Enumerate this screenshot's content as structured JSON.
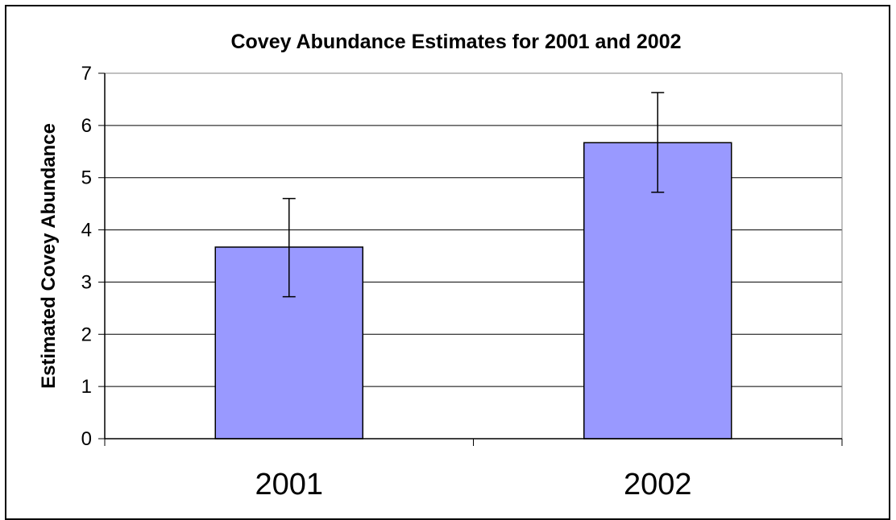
{
  "chart_data": {
    "type": "bar",
    "title": "Covey Abundance Estimates for 2001 and 2002",
    "xlabel": "",
    "ylabel": "Estimated Covey Abundance",
    "categories": [
      "2001",
      "2002"
    ],
    "values": [
      3.67,
      5.67
    ],
    "error_low": [
      2.72,
      4.72
    ],
    "error_high": [
      4.6,
      6.63
    ],
    "ylim": [
      0,
      7
    ],
    "yticks": [
      "0",
      "1",
      "2",
      "3",
      "4",
      "5",
      "6",
      "7"
    ],
    "grid": true,
    "legend": "none",
    "colors": {
      "bar_fill": "#9999ff",
      "bar_stroke": "#000000",
      "grid": "#000000"
    }
  }
}
